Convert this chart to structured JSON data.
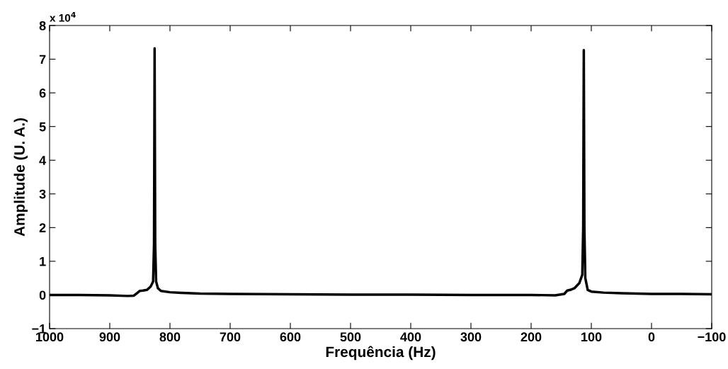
{
  "chart_data": {
    "type": "line",
    "xlabel": "Frequência (Hz)",
    "ylabel": "Amplitude (U. A.)",
    "annotations": [
      "x 10$^{4}$"
    ],
    "x": [
      1000,
      950,
      900,
      870,
      860,
      855,
      850,
      845,
      838,
      832,
      828,
      826.5,
      825.5,
      824.5,
      823,
      820,
      815,
      800,
      780,
      750,
      700,
      600,
      500,
      400,
      300,
      200,
      160,
      145,
      140,
      135,
      128,
      120,
      115,
      113.5,
      112.5,
      111.5,
      110,
      106,
      100,
      80,
      50,
      0,
      -50,
      -100
    ],
    "series": [
      {
        "color": "#000000",
        "values": [
          0,
          0,
          -0.01,
          -0.03,
          -0.02,
          0.05,
          0.12,
          0.13,
          0.15,
          0.25,
          0.4,
          1.5,
          7.32,
          1.5,
          0.4,
          0.2,
          0.12,
          0.08,
          0.06,
          0.04,
          0.03,
          0.02,
          0.01,
          0.01,
          0,
          0,
          -0.01,
          0.03,
          0.13,
          0.15,
          0.2,
          0.35,
          0.6,
          2,
          7.27,
          2,
          0.5,
          0.15,
          0.1,
          0.07,
          0.05,
          0.03,
          0.03,
          0.02
        ]
      }
    ],
    "xlim": [
      1000,
      -100
    ],
    "xticks": [
      1000,
      900,
      800,
      700,
      600,
      500,
      400,
      300,
      200,
      100,
      0,
      {
        "value": -100,
        "label": "−100"
      }
    ],
    "ylim": [
      -1,
      8
    ],
    "yticks": [
      {
        "value": -1,
        "label": "−1"
      },
      0,
      1,
      2,
      3,
      4,
      5,
      6,
      7,
      8
    ],
    "grid": false,
    "legend": false,
    "marker": "none",
    "line_style": "solid"
  }
}
